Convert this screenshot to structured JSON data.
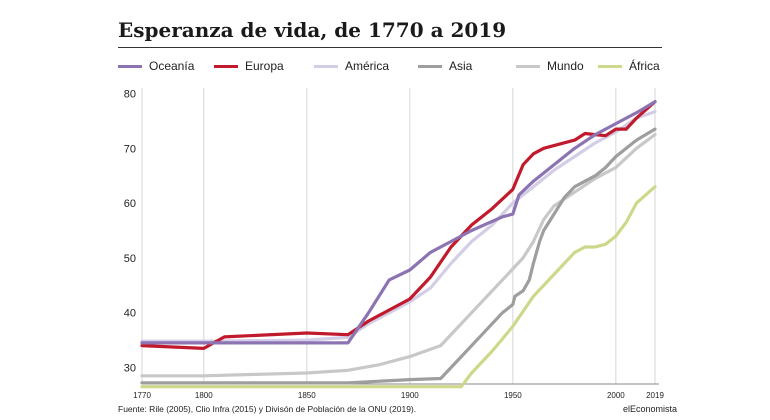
{
  "title": "Esperanza de vida, de 1770 a 2019",
  "source": "Fuente: Rile (2005), Clio Infra (2015) y Divisón de Población de la ONU (2019).",
  "brand": "elEconomista",
  "chart_data": {
    "type": "line",
    "title": "Esperanza de vida, de 1770 a 2019",
    "xlabel": "",
    "ylabel": "",
    "xlim": [
      1770,
      2019
    ],
    "ylim": [
      27,
      81
    ],
    "grid": "vertical",
    "legend_position": "top",
    "x_ticks": [
      1770,
      1800,
      1850,
      1900,
      1950,
      2000,
      2019
    ],
    "y_ticks": [
      30,
      40,
      50,
      60,
      70,
      80
    ],
    "series": [
      {
        "name": "Oceanía",
        "color": "#8c74b3",
        "points": [
          [
            1770,
            34.5
          ],
          [
            1850,
            34.5
          ],
          [
            1870,
            34.5
          ],
          [
            1880,
            40
          ],
          [
            1890,
            46
          ],
          [
            1900,
            47.8
          ],
          [
            1910,
            51
          ],
          [
            1920,
            53
          ],
          [
            1930,
            55
          ],
          [
            1945,
            57.5
          ],
          [
            1950,
            58
          ],
          [
            1953,
            61.5
          ],
          [
            1960,
            64
          ],
          [
            1970,
            67
          ],
          [
            1980,
            70
          ],
          [
            1990,
            72.5
          ],
          [
            2000,
            74.5
          ],
          [
            2010,
            76.5
          ],
          [
            2019,
            78.5
          ]
        ]
      },
      {
        "name": "Europa",
        "color": "#c01a2c",
        "points": [
          [
            1770,
            34
          ],
          [
            1800,
            33.5
          ],
          [
            1810,
            35.6
          ],
          [
            1850,
            36.3
          ],
          [
            1870,
            36
          ],
          [
            1880,
            38.5
          ],
          [
            1890,
            40.5
          ],
          [
            1900,
            42.5
          ],
          [
            1910,
            46.5
          ],
          [
            1920,
            52
          ],
          [
            1930,
            56
          ],
          [
            1940,
            59
          ],
          [
            1950,
            62.5
          ],
          [
            1955,
            67
          ],
          [
            1960,
            69
          ],
          [
            1965,
            70
          ],
          [
            1970,
            70.5
          ],
          [
            1980,
            71.5
          ],
          [
            1985,
            72.7
          ],
          [
            1990,
            72.5
          ],
          [
            1995,
            72.3
          ],
          [
            2000,
            73.5
          ],
          [
            2005,
            73.5
          ],
          [
            2010,
            75.5
          ],
          [
            2019,
            78.5
          ]
        ]
      },
      {
        "name": "América",
        "color": "#d3cde6",
        "points": [
          [
            1770,
            34.8
          ],
          [
            1800,
            34.8
          ],
          [
            1850,
            35
          ],
          [
            1870,
            35.5
          ],
          [
            1880,
            38
          ],
          [
            1890,
            40
          ],
          [
            1900,
            42
          ],
          [
            1910,
            44.5
          ],
          [
            1920,
            49
          ],
          [
            1930,
            53
          ],
          [
            1940,
            56
          ],
          [
            1950,
            60
          ],
          [
            1960,
            63
          ],
          [
            1970,
            66
          ],
          [
            1980,
            68.5
          ],
          [
            1990,
            71
          ],
          [
            2000,
            73
          ],
          [
            2010,
            75.5
          ],
          [
            2019,
            76.7
          ]
        ]
      },
      {
        "name": "Asia",
        "color": "#9e9e9e",
        "points": [
          [
            1770,
            27.2
          ],
          [
            1870,
            27.2
          ],
          [
            1900,
            27.8
          ],
          [
            1915,
            28
          ],
          [
            1925,
            32
          ],
          [
            1935,
            36
          ],
          [
            1945,
            40
          ],
          [
            1950,
            41.5
          ],
          [
            1951,
            43
          ],
          [
            1955,
            44
          ],
          [
            1958,
            46
          ],
          [
            1960,
            49
          ],
          [
            1963,
            53
          ],
          [
            1965,
            55
          ],
          [
            1970,
            58
          ],
          [
            1975,
            61
          ],
          [
            1980,
            63
          ],
          [
            1985,
            64
          ],
          [
            1990,
            65
          ],
          [
            1995,
            66.5
          ],
          [
            2000,
            68.5
          ],
          [
            2010,
            71.5
          ],
          [
            2019,
            73.5
          ]
        ]
      },
      {
        "name": "Mundo",
        "color": "#c8c8c8",
        "points": [
          [
            1770,
            28.5
          ],
          [
            1800,
            28.5
          ],
          [
            1850,
            29
          ],
          [
            1870,
            29.5
          ],
          [
            1885,
            30.5
          ],
          [
            1900,
            32
          ],
          [
            1915,
            34
          ],
          [
            1930,
            40
          ],
          [
            1940,
            44
          ],
          [
            1950,
            48
          ],
          [
            1955,
            50
          ],
          [
            1960,
            53
          ],
          [
            1965,
            57
          ],
          [
            1970,
            59.5
          ],
          [
            1980,
            62
          ],
          [
            1990,
            64.5
          ],
          [
            2000,
            66.5
          ],
          [
            2010,
            70
          ],
          [
            2019,
            72.5
          ]
        ]
      },
      {
        "name": "África",
        "color": "#cfd88a",
        "points": [
          [
            1770,
            26.5
          ],
          [
            1925,
            26.5
          ],
          [
            1930,
            29
          ],
          [
            1940,
            33
          ],
          [
            1950,
            37.5
          ],
          [
            1960,
            43
          ],
          [
            1970,
            47
          ],
          [
            1980,
            51
          ],
          [
            1985,
            52
          ],
          [
            1990,
            52
          ],
          [
            1995,
            52.5
          ],
          [
            2000,
            54
          ],
          [
            2005,
            56.5
          ],
          [
            2010,
            60
          ],
          [
            2019,
            63
          ]
        ]
      }
    ]
  }
}
